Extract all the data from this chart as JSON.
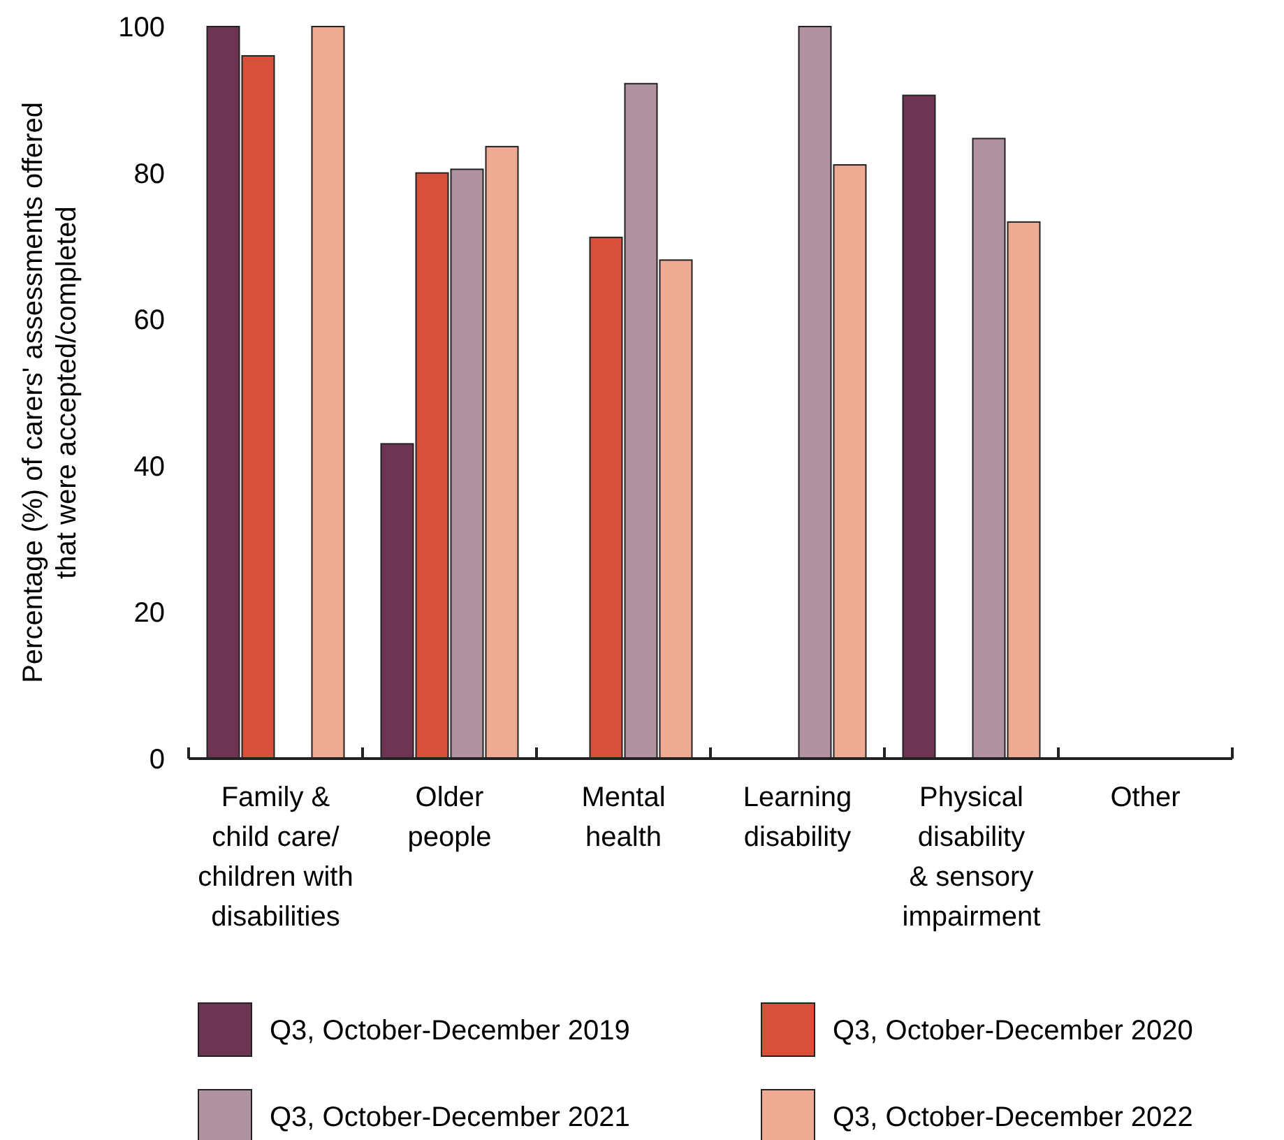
{
  "chart_data": {
    "type": "bar",
    "ylabel": "Percentage (%) of carers' assessments offered\nthat were accepted/completed",
    "categories": [
      "Family &\nchild care/\nchildren with\ndisabilities",
      "Older\npeople",
      "Mental\nhealth",
      "Learning\ndisability",
      "Physical\ndisability\n& sensory\nimpairment",
      "Other"
    ],
    "series": [
      {
        "name": "Q3, October-December 2019",
        "color": "#6e3553",
        "values": [
          100,
          43,
          null,
          null,
          90.6,
          null
        ]
      },
      {
        "name": "Q3, October-December 2020",
        "color": "#d9503a",
        "values": [
          96,
          80,
          71.2,
          null,
          null,
          null
        ]
      },
      {
        "name": "Q3, October-December 2021",
        "color": "#b092a0",
        "values": [
          null,
          80.5,
          92.2,
          100,
          84.7,
          null
        ]
      },
      {
        "name": "Q3, October-December 2022",
        "color": "#eeaa92",
        "values": [
          100,
          83.6,
          68.1,
          81.1,
          73.3,
          null
        ]
      }
    ],
    "ylim": [
      0,
      100
    ],
    "yticks": [
      0,
      20,
      40,
      60,
      80,
      100
    ],
    "grid": false,
    "legend": "bottom"
  }
}
